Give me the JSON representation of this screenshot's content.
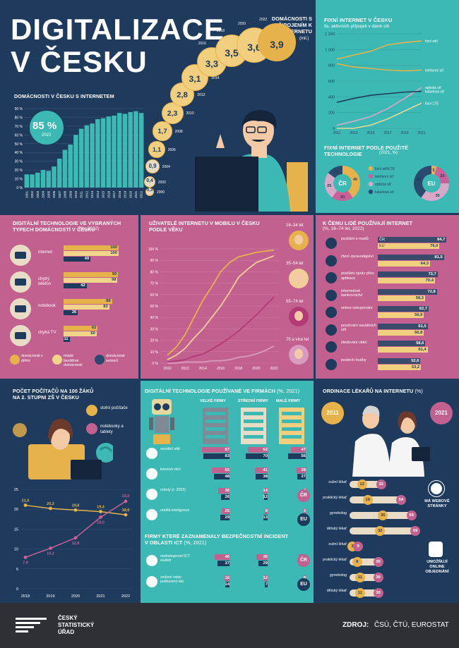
{
  "title": {
    "line1": "DIGITALIZACE",
    "line2": "V ČESKU"
  },
  "households": {
    "label": "DOMÁCNOSTI V ČESKU S INTERNETEM",
    "highlight_value": "85 %",
    "highlight_year": "2022",
    "y_ticks": [
      "90 %",
      "80 %",
      "70 %",
      "60 %",
      "50 %",
      "40 %",
      "30 %",
      "20 %",
      "10 %",
      "0 %"
    ]
  },
  "households_count": {
    "label": "DOMÁCNOSTI S PŘIPOJENÍM K INTERNETU",
    "unit": "(mil.)",
    "items": [
      {
        "year": "2000",
        "value": "0,3"
      },
      {
        "year": "2002",
        "value": "0,4"
      },
      {
        "year": "2004",
        "value": "0,9"
      },
      {
        "year": "2006",
        "value": "1,1"
      },
      {
        "year": "2008",
        "value": "1,7"
      },
      {
        "year": "2010",
        "value": "2,3"
      },
      {
        "year": "2012",
        "value": "2,8"
      },
      {
        "year": "2014",
        "value": "3,1"
      },
      {
        "year": "2016",
        "value": "3,3"
      },
      {
        "year": "2018",
        "value": "3,5"
      },
      {
        "year": "2020",
        "value": "3,6"
      },
      {
        "year": "2022",
        "value": "3,9"
      }
    ]
  },
  "fixed_internet": {
    "title": "FIXNÍ INTERNET V ČESKU",
    "subtitle": "tis. aktivních přípojek v dané síti",
    "series_labels": [
      "fixní wifi",
      "telefonní síť",
      "optická síť",
      "kabelová síť",
      "fixní LTE"
    ],
    "y_ticks": [
      "1 200",
      "1 000",
      "800",
      "600",
      "400",
      "200",
      "0"
    ],
    "x_ticks": [
      "2011",
      "2013",
      "2015",
      "2017",
      "2019",
      "2021"
    ]
  },
  "tech_share": {
    "title": "FIXNÍ INTERNET PODLE POUŽITÉ TECHNOLOGIE",
    "subtitle": "(2021, %)",
    "cr_label": "ČR",
    "eu_label": "EU",
    "legend": [
      "fixní wifi/LTE",
      "telefonní síť",
      "optická síť",
      "kabelová síť"
    ],
    "colors": [
      "#e8b24a",
      "#c8619a",
      "#d8a8c8",
      "#2a4a6e"
    ]
  },
  "household_tech": {
    "title": "DIGITÁLNÍ TECHNOLOGIE VE VYBRANÝCH TYPECH DOMÁCNOSTÍ V ČESKU",
    "unit": "(%, 2022)",
    "items": [
      {
        "label": "internet",
        "v": [
          "100",
          "100",
          "49"
        ]
      },
      {
        "label": "chytrý telefon",
        "v": [
          "99",
          "98",
          "42"
        ]
      },
      {
        "label": "notebook",
        "v": [
          "88",
          "83",
          "26"
        ]
      },
      {
        "label": "chytrá TV",
        "v": [
          "62",
          "60",
          "11"
        ]
      }
    ],
    "legend": [
      "domácnosti s dětmi",
      "mladé bezdětné domácnosti",
      "domácnosti seniorů"
    ]
  },
  "mobile": {
    "title": "UŽIVATELÉ INTERNETU V MOBILU V ČESKU PODLE VĚKU",
    "y_ticks": [
      "100 %",
      "90 %",
      "80 %",
      "70 %",
      "60 %",
      "50 %",
      "40 %",
      "30 %",
      "20 %",
      "10 %",
      "0 %"
    ],
    "x_ticks": [
      "2010",
      "2012",
      "2014",
      "2016",
      "2018",
      "2020",
      "2022"
    ],
    "ages": [
      "16–34 let",
      "35–54 let",
      "55–74 let",
      "75 a více let"
    ]
  },
  "uses": {
    "title": "K ČEMU LIDÉ POUŽÍVAJÍ INTERNET",
    "subtitle": "(%, 16–74 let, 2022)",
    "cr": "ČR",
    "eu": "EU",
    "items": [
      {
        "label": "posílání e-mailů",
        "cr": "84,7",
        "eu": "76,0"
      },
      {
        "label": "čtení zpravodajství",
        "cr": "81,5",
        "eu": "64,3"
      },
      {
        "label": "posílání zpráv přes aplikace",
        "cr": "73,7",
        "eu": "70,4"
      },
      {
        "label": "internetové bankovnictví",
        "cr": "72,8",
        "eu": "58,3"
      },
      {
        "label": "online nakupování",
        "cr": "62,7",
        "eu": "56,9"
      },
      {
        "label": "používání sociálních sítí",
        "cr": "61,5",
        "eu": "56,8"
      },
      {
        "label": "sledování videí",
        "cr": "58,6",
        "eu": "61,4"
      },
      {
        "label": "poslech hudby",
        "cr": "52,6",
        "eu": "53,2"
      }
    ]
  },
  "computers": {
    "title": "POČET POČÍTAČŮ NA 100 ŽÁKŮ NA 2. STUPNI ZŠ V ČESKU",
    "legend": [
      "stolní počítače",
      "notebooky a tablety"
    ]
  },
  "firms": {
    "title": "DIGITÁLNÍ TECHNOLOGIE POUŽÍVANÉ VE FIRMÁCH",
    "unit": "(%, 2021)",
    "cols": [
      "VELKÉ FIRMY",
      "STŘEDNÍ FIRMY",
      "MALÉ FIRMY"
    ],
    "rows": [
      {
        "label": "sociální sítě",
        "cr": [
          "87",
          "62",
          "47"
        ],
        "eu": [
          "83",
          "70",
          "56"
        ]
      },
      {
        "label": "internet věcí",
        "cr": [
          "55",
          "41",
          "28"
        ],
        "eu": [
          "48",
          "38",
          "27"
        ]
      },
      {
        "label": "roboty (r. 2022)",
        "cr": [
          "36",
          "14",
          "3"
        ],
        "eu": [
          "26",
          "12",
          "5"
        ]
      },
      {
        "label": "umělá inteligence",
        "cr": [
          "25",
          "8",
          "3"
        ],
        "eu": [
          "29",
          "13",
          "6"
        ]
      }
    ],
    "cr": "ČR",
    "eu": "EU",
    "incidents_title": "FIRMY KTERÉ ZAZNAMENALY BEZPEČNOSTNÍ INCIDENT V OBLASTI ICT",
    "incidents_unit": "(%, 2021)",
    "incidents": [
      {
        "label": "nedostupnost ICT služeb",
        "cr": [
          "46",
          "36",
          "23"
        ],
        "eu": [
          "37",
          "29",
          "18"
        ]
      },
      {
        "label": "zničení nebo poškození dat",
        "cr": [
          "16",
          "12",
          "8"
        ],
        "eu": [
          "14",
          "7",
          "5"
        ]
      }
    ]
  },
  "doctors": {
    "title": "ORDINACE LÉKAŘŮ NA INTERNETU",
    "unit": "(%)",
    "y2011": "2011",
    "y2021": "2021",
    "web": [
      {
        "label": "zubní lékař",
        "a": "13",
        "b": "33"
      },
      {
        "label": "praktický lékař",
        "a": "19",
        "b": "54"
      },
      {
        "label": "gynekolog",
        "a": "35",
        "b": "65"
      },
      {
        "label": "dětský lékař",
        "a": "32",
        "b": "69"
      }
    ],
    "web_label": "MÁ WEBOVÉ STRÁNKY",
    "online": [
      {
        "label": "zubní lékař",
        "a": "3",
        "b": "9"
      },
      {
        "label": "praktický lékař",
        "a": "8",
        "b": "30"
      },
      {
        "label": "gynekolog",
        "a": "11",
        "b": "30"
      },
      {
        "label": "dětský lékař",
        "a": "11",
        "b": "30"
      }
    ],
    "online_label": "UMOŽŇUJÍ ONLINE OBJEDNÁNÍ"
  },
  "footer": {
    "logo": [
      "ČESKÝ",
      "STATISTICKÝ",
      "ÚŘAD"
    ],
    "source_label": "ZDROJ:",
    "source": "ČSÚ, ČTÚ, EUROSTAT"
  },
  "chart_data": [
    {
      "type": "bar",
      "title": "DOMÁCNOSTI V ČESKU S INTERNETEM",
      "categories": [
        "2001",
        "2002",
        "2003",
        "2004",
        "2005",
        "2006",
        "2007",
        "2008",
        "2009",
        "2010",
        "2011",
        "2012",
        "2013",
        "2014",
        "2015",
        "2016",
        "2017",
        "2018",
        "2019",
        "2020",
        "2021",
        "2022"
      ],
      "values": [
        15,
        15,
        17,
        20,
        19,
        24,
        33,
        43,
        49,
        60,
        67,
        71,
        73,
        78,
        79,
        81,
        82,
        85,
        84,
        86,
        87,
        85
      ],
      "ylim": [
        0,
        90
      ]
    },
    {
      "type": "line",
      "title": "FIXNÍ INTERNET V ČESKU",
      "x": [
        2011,
        2013,
        2015,
        2017,
        2019,
        2021
      ],
      "ylim": [
        0,
        1200
      ],
      "series": [
        {
          "name": "fixní wifi",
          "values": [
            880,
            930,
            980,
            1060,
            1090,
            1110
          ],
          "color": "#e8b24a"
        },
        {
          "name": "telefonní síť",
          "values": [
            820,
            780,
            760,
            740,
            730,
            740
          ],
          "color": "#e8b24a"
        },
        {
          "name": "optická síť",
          "values": [
            40,
            90,
            150,
            250,
            380,
            520
          ],
          "color": "#d8a8c8"
        },
        {
          "name": "kabelová síť",
          "values": [
            330,
            380,
            420,
            440,
            460,
            470
          ],
          "color": "#1e3a5c"
        },
        {
          "name": "fixní LTE",
          "values": [
            0,
            0,
            40,
            120,
            220,
            320
          ],
          "color": "#e8d79a"
        }
      ]
    },
    {
      "type": "pie",
      "title": "ČR",
      "labels": [
        "fixní wifi/LTE",
        "telefonní síť",
        "optická síť",
        "kabelová síť"
      ],
      "values": [
        40,
        20,
        25,
        15
      ]
    },
    {
      "type": "pie",
      "title": "EU",
      "labels": [
        "fixní wifi/LTE",
        "telefonní síť",
        "optická síť",
        "kabelová síť"
      ],
      "values": [
        5,
        20,
        35,
        40
      ]
    },
    {
      "type": "line",
      "title": "UŽIVATELÉ INTERNETU V MOBILU V ČESKU PODLE VĚKU",
      "x": [
        2010,
        2011,
        2012,
        2013,
        2014,
        2015,
        2016,
        2017,
        2018,
        2019,
        2020,
        2021,
        2022
      ],
      "ylim": [
        0,
        100
      ],
      "series": [
        {
          "name": "16–34 let",
          "values": [
            7,
            14,
            25,
            40,
            55,
            67,
            80,
            88,
            93,
            95,
            97,
            98,
            99
          ],
          "color": "#e8b24a"
        },
        {
          "name": "35–54 let",
          "values": [
            3,
            7,
            13,
            22,
            30,
            40,
            50,
            62,
            75,
            82,
            88,
            91,
            94
          ],
          "color": "#f2cf9a"
        },
        {
          "name": "55–74 let",
          "values": [
            1,
            2,
            3,
            6,
            8,
            12,
            17,
            22,
            28,
            35,
            42,
            50,
            58
          ],
          "color": "#b33a78"
        },
        {
          "name": "75 a více let",
          "values": [
            0,
            0,
            1,
            1,
            1,
            2,
            2,
            3,
            5,
            6,
            8,
            11,
            15
          ],
          "color": "#d99cc0"
        }
      ]
    },
    {
      "type": "line",
      "title": "POČET POČÍTAČŮ NA 100 ŽÁKŮ NA 2. STUPNI ZŠ V ČESKU",
      "x": [
        2018,
        2019,
        2020,
        2021,
        2022
      ],
      "ylim": [
        0,
        25
      ],
      "series": [
        {
          "name": "stolní počítače",
          "values": [
            21.0,
            20.2,
            19.8,
            19.4,
            18.6
          ],
          "color": "#e8b24a"
        },
        {
          "name": "notebooky a tablety",
          "values": [
            7.9,
            10.2,
            12.8,
            18.0,
            22.0
          ],
          "color": "#c8619a"
        }
      ]
    }
  ]
}
